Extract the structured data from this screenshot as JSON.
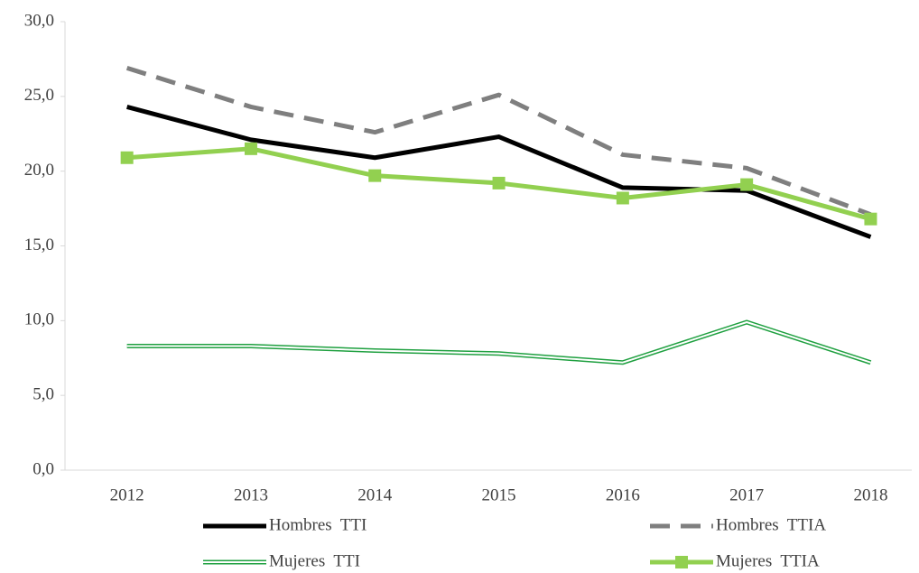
{
  "chart_data": {
    "type": "line",
    "categories": [
      "2012",
      "2013",
      "2014",
      "2015",
      "2016",
      "2017",
      "2018"
    ],
    "ylim": [
      0,
      30
    ],
    "yticks": [
      {
        "value": 0,
        "label": "0,0"
      },
      {
        "value": 5,
        "label": "5,0"
      },
      {
        "value": 10,
        "label": "10,0"
      },
      {
        "value": 15,
        "label": "15,0"
      },
      {
        "value": 20,
        "label": "20,0"
      },
      {
        "value": 25,
        "label": "25,0"
      },
      {
        "value": 30,
        "label": "30,0"
      }
    ],
    "grid": false,
    "legend": "bottom",
    "series": [
      {
        "name": "Hombres  TTI",
        "color": "#000000",
        "style": "solid",
        "values": [
          24.3,
          22.1,
          20.9,
          22.3,
          18.9,
          18.7,
          15.6
        ]
      },
      {
        "name": "Hombres  TTIA",
        "color": "#7f7f7f",
        "style": "dashed",
        "values": [
          26.9,
          24.3,
          22.6,
          25.1,
          21.1,
          20.2,
          17.1
        ]
      },
      {
        "name": "Mujeres  TTI",
        "color": "#1fa040",
        "style": "double",
        "values": [
          8.3,
          8.3,
          8.0,
          7.8,
          7.2,
          9.9,
          7.2
        ]
      },
      {
        "name": "Mujeres  TTIA",
        "color": "#92d050",
        "style": "square-marker",
        "values": [
          20.9,
          21.5,
          19.7,
          19.2,
          18.2,
          19.1,
          16.8
        ]
      }
    ]
  }
}
